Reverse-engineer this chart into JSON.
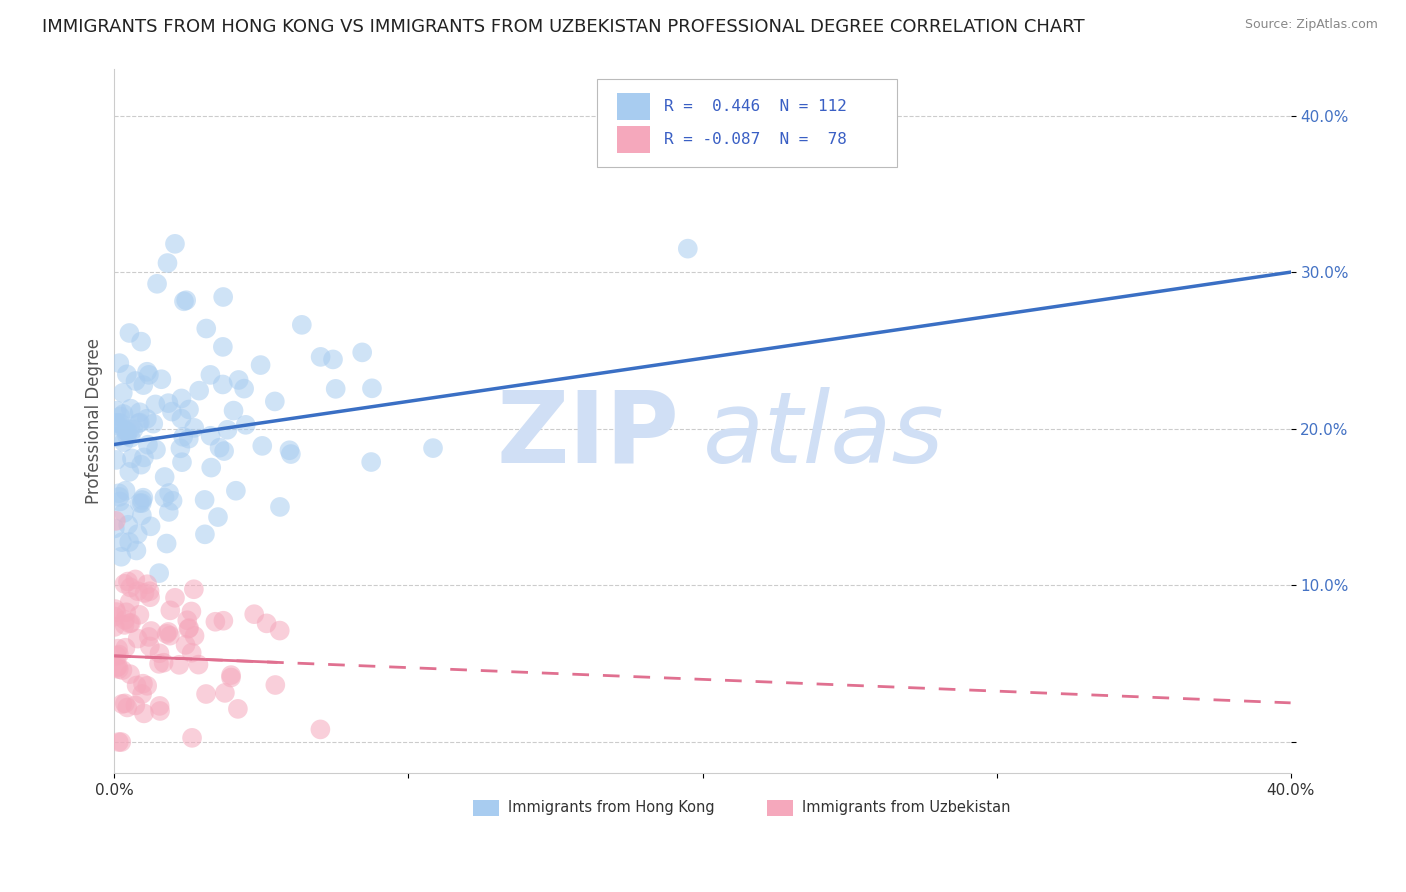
{
  "title": "IMMIGRANTS FROM HONG KONG VS IMMIGRANTS FROM UZBEKISTAN PROFESSIONAL DEGREE CORRELATION CHART",
  "source": "Source: ZipAtlas.com",
  "ylabel": "Professional Degree",
  "xmin": 0.0,
  "xmax": 0.4,
  "ymin": -0.02,
  "ymax": 0.43,
  "ytick_vals": [
    0.0,
    0.1,
    0.2,
    0.3,
    0.4
  ],
  "ytick_labels": [
    "",
    "10.0%",
    "20.0%",
    "30.0%",
    "40.0%"
  ],
  "hk_R": 0.446,
  "hk_N": 112,
  "uz_R": -0.087,
  "uz_N": 78,
  "hk_color": "#A8CCF0",
  "uz_color": "#F5A8BC",
  "hk_line_color": "#3A6FC4",
  "uz_line_color": "#E07090",
  "hk_line_y0": 0.19,
  "hk_line_y1": 0.3,
  "uz_line_y0": 0.055,
  "uz_line_y1": 0.025,
  "watermark_zip": "ZIP",
  "watermark_atlas": "atlas",
  "watermark_color": "#D0DFF5",
  "background_color": "#FFFFFF",
  "legend_label_hk": "Immigrants from Hong Kong",
  "legend_label_uz": "Immigrants from Uzbekistan",
  "title_fontsize": 13,
  "axis_fontsize": 11,
  "seed_hk": 42,
  "seed_uz": 99
}
